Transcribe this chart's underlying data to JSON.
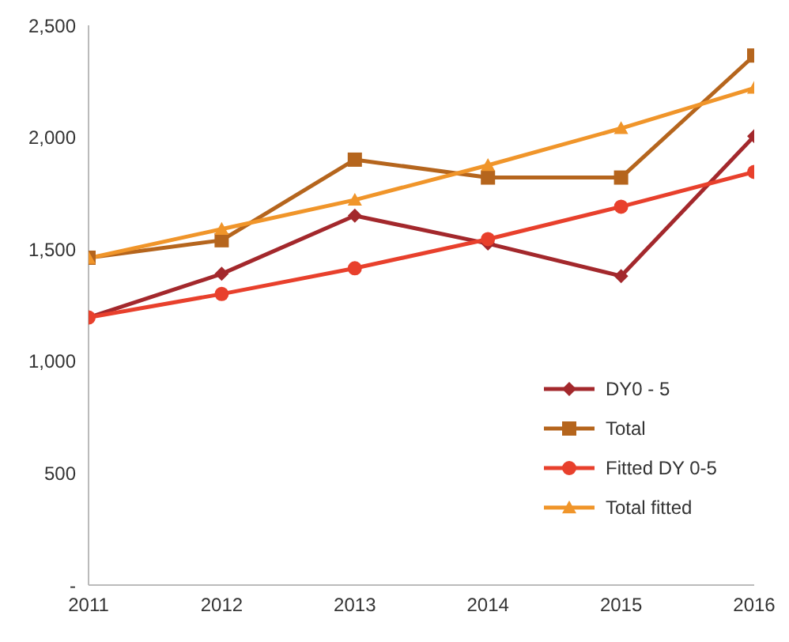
{
  "chart_data": {
    "type": "line",
    "x": [
      2011,
      2012,
      2013,
      2014,
      2015,
      2016
    ],
    "xlim": [
      2011,
      2016
    ],
    "xticks": [
      2011,
      2012,
      2013,
      2014,
      2015,
      2016
    ],
    "ylim": [
      0,
      2500
    ],
    "yticks": [
      {
        "value": 0,
        "label": "-"
      },
      {
        "value": 500,
        "label": "500"
      },
      {
        "value": 1000,
        "label": "1,000"
      },
      {
        "value": 1500,
        "label": "1,500"
      },
      {
        "value": 2000,
        "label": "2,000"
      },
      {
        "value": 2500,
        "label": "2,500"
      }
    ],
    "grid": false,
    "legend": "right",
    "line_style": "solid",
    "series": [
      {
        "name": "DY0 - 5",
        "color": "#a3282c",
        "marker": "diamond",
        "values": [
          1195,
          1390,
          1650,
          1525,
          1380,
          2005
        ]
      },
      {
        "name": "Total",
        "color": "#b5651d",
        "marker": "square",
        "values": [
          1462,
          1540,
          1900,
          1820,
          1820,
          2365
        ]
      },
      {
        "name": "Fitted DY 0-5",
        "color": "#e8402c",
        "marker": "circle",
        "values": [
          1195,
          1300,
          1415,
          1545,
          1690,
          1845
        ]
      },
      {
        "name": "Total fitted",
        "color": "#f0952a",
        "marker": "triangle",
        "values": [
          1460,
          1590,
          1720,
          1875,
          2040,
          2220
        ]
      }
    ]
  }
}
